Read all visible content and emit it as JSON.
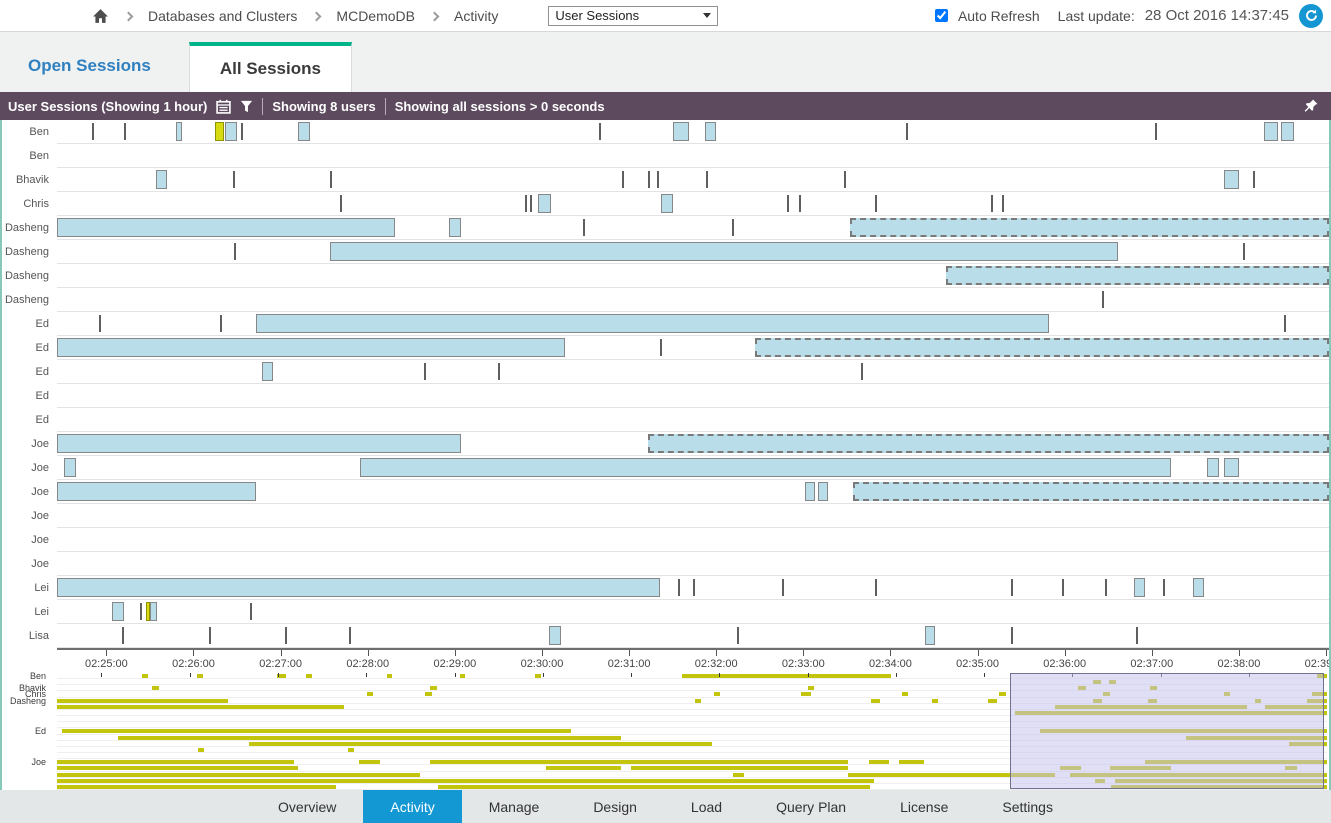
{
  "topbar": {
    "breadcrumb": [
      "Databases and Clusters",
      "MCDemoDB",
      "Activity"
    ],
    "view_select": {
      "value": "User Sessions"
    },
    "auto_refresh_label": "Auto Refresh",
    "auto_refresh_checked": true,
    "last_update_label": "Last update:",
    "last_update_value": "28 Oct 2016 14:37:45"
  },
  "tabs": {
    "open": "Open Sessions",
    "all": "All Sessions",
    "active": "All Sessions"
  },
  "filterbar": {
    "title": "User Sessions  (Showing 1 hour)",
    "users_summary": "Showing 8 users",
    "sessions_summary": "Showing all sessions > 0 seconds"
  },
  "colors": {
    "purple_header": "#5d4a5f",
    "tab_green": "#00b388",
    "link_blue": "#2f80c0",
    "session_fill": "#badee9",
    "session_border": "#878787",
    "yellow_bar": "#d8da12",
    "minimap_bar": "#c2c40e",
    "selection_fill": "#c5c1eb",
    "nav_active": "#1398d4",
    "refresh_blue": "#1496d2",
    "panel_border_teal": "#86c9b8"
  },
  "chart_data": {
    "type": "timeline-gantt",
    "title": "User Sessions (Showing 1 hour)",
    "x_axis": {
      "min": "02:24:26",
      "max": "02:39:02",
      "tick_labels": [
        "02:25:00",
        "02:26:00",
        "02:27:00",
        "02:28:00",
        "02:29:00",
        "02:30:00",
        "02:31:00",
        "02:32:00",
        "02:33:00",
        "02:34:00",
        "02:35:00",
        "02:36:00",
        "02:37:00",
        "02:38:00",
        "02:39:00"
      ]
    },
    "rows": [
      {
        "user": "Ben",
        "sessions": [
          {
            "type": "tick",
            "start": "02:24:50"
          },
          {
            "type": "tick",
            "start": "02:25:12"
          },
          {
            "type": "solid",
            "start": "02:25:48",
            "end": "02:25:52"
          },
          {
            "type": "yellow",
            "start": "02:26:15",
            "end": "02:26:21"
          },
          {
            "type": "solid",
            "start": "02:26:22",
            "end": "02:26:30"
          },
          {
            "type": "tick",
            "start": "02:26:33"
          },
          {
            "type": "solid",
            "start": "02:27:12",
            "end": "02:27:20"
          },
          {
            "type": "tick",
            "start": "02:30:39"
          },
          {
            "type": "solid",
            "start": "02:31:30",
            "end": "02:31:41"
          },
          {
            "type": "solid",
            "start": "02:31:52",
            "end": "02:32:00"
          },
          {
            "type": "tick",
            "start": "02:34:11"
          },
          {
            "type": "tick",
            "start": "02:37:02"
          },
          {
            "type": "solid",
            "start": "02:38:17",
            "end": "02:38:27"
          },
          {
            "type": "solid",
            "start": "02:38:29",
            "end": "02:38:38"
          }
        ]
      },
      {
        "user": "Ben",
        "sessions": []
      },
      {
        "user": "Bhavik",
        "sessions": [
          {
            "type": "solid",
            "start": "02:25:34",
            "end": "02:25:42"
          },
          {
            "type": "tick",
            "start": "02:26:27"
          },
          {
            "type": "tick",
            "start": "02:27:34"
          },
          {
            "type": "tick",
            "start": "02:30:55"
          },
          {
            "type": "tick",
            "start": "02:31:13"
          },
          {
            "type": "tick",
            "start": "02:31:19"
          },
          {
            "type": "tick",
            "start": "02:31:53"
          },
          {
            "type": "tick",
            "start": "02:33:28"
          },
          {
            "type": "solid",
            "start": "02:37:50",
            "end": "02:38:00"
          },
          {
            "type": "tick",
            "start": "02:38:10"
          }
        ]
      },
      {
        "user": "Chris",
        "sessions": [
          {
            "type": "tick",
            "start": "02:27:41"
          },
          {
            "type": "tick",
            "start": "02:29:48"
          },
          {
            "type": "tick",
            "start": "02:29:52"
          },
          {
            "type": "solid",
            "start": "02:29:57",
            "end": "02:30:06"
          },
          {
            "type": "solid",
            "start": "02:31:22",
            "end": "02:31:30"
          },
          {
            "type": "tick",
            "start": "02:32:49"
          },
          {
            "type": "tick",
            "start": "02:32:57"
          },
          {
            "type": "tick",
            "start": "02:33:49"
          },
          {
            "type": "tick",
            "start": "02:35:09"
          },
          {
            "type": "tick",
            "start": "02:35:17"
          }
        ]
      },
      {
        "user": "Dasheng",
        "sessions": [
          {
            "type": "solid",
            "start": "02:24:26",
            "end": "02:28:19"
          },
          {
            "type": "solid",
            "start": "02:28:56",
            "end": "02:29:04"
          },
          {
            "type": "tick",
            "start": "02:30:28"
          },
          {
            "type": "tick",
            "start": "02:32:11"
          },
          {
            "type": "open",
            "start": "02:33:32"
          }
        ]
      },
      {
        "user": "Dasheng",
        "sessions": [
          {
            "type": "tick",
            "start": "02:26:28"
          },
          {
            "type": "solid",
            "start": "02:27:34",
            "end": "02:36:37"
          },
          {
            "type": "tick",
            "start": "02:38:03"
          }
        ]
      },
      {
        "user": "Dasheng",
        "sessions": [
          {
            "type": "open",
            "start": "02:34:38"
          }
        ]
      },
      {
        "user": "Dasheng",
        "sessions": [
          {
            "type": "tick",
            "start": "02:36:26"
          }
        ]
      },
      {
        "user": "Ed",
        "sessions": [
          {
            "type": "tick",
            "start": "02:24:55"
          },
          {
            "type": "tick",
            "start": "02:26:18"
          },
          {
            "type": "solid",
            "start": "02:26:43",
            "end": "02:35:49"
          },
          {
            "type": "tick",
            "start": "02:38:31"
          }
        ]
      },
      {
        "user": "Ed",
        "sessions": [
          {
            "type": "solid",
            "start": "02:24:26",
            "end": "02:30:16"
          },
          {
            "type": "tick",
            "start": "02:31:21"
          },
          {
            "type": "open",
            "start": "02:32:27"
          }
        ]
      },
      {
        "user": "Ed",
        "sessions": [
          {
            "type": "solid",
            "start": "02:26:47",
            "end": "02:26:55"
          },
          {
            "type": "tick",
            "start": "02:28:39"
          },
          {
            "type": "tick",
            "start": "02:29:30"
          },
          {
            "type": "tick",
            "start": "02:33:40"
          }
        ]
      },
      {
        "user": "Ed",
        "sessions": []
      },
      {
        "user": "Ed",
        "sessions": []
      },
      {
        "user": "Joe",
        "sessions": [
          {
            "type": "solid",
            "start": "02:24:26",
            "end": "02:29:04"
          },
          {
            "type": "open",
            "start": "02:31:13"
          }
        ]
      },
      {
        "user": "Joe",
        "sessions": [
          {
            "type": "solid",
            "start": "02:24:31",
            "end": "02:24:39"
          },
          {
            "type": "solid",
            "start": "02:27:55",
            "end": "02:37:13"
          },
          {
            "type": "solid",
            "start": "02:37:38",
            "end": "02:37:46"
          },
          {
            "type": "solid",
            "start": "02:37:50",
            "end": "02:38:00"
          }
        ]
      },
      {
        "user": "Joe",
        "sessions": [
          {
            "type": "solid",
            "start": "02:24:26",
            "end": "02:26:43"
          },
          {
            "type": "solid",
            "start": "02:33:01",
            "end": "02:33:08"
          },
          {
            "type": "solid",
            "start": "02:33:10",
            "end": "02:33:17"
          },
          {
            "type": "open",
            "start": "02:33:34"
          }
        ]
      },
      {
        "user": "Joe",
        "sessions": []
      },
      {
        "user": "Joe",
        "sessions": []
      },
      {
        "user": "Joe",
        "sessions": []
      },
      {
        "user": "Lei",
        "sessions": [
          {
            "type": "solid",
            "start": "02:24:26",
            "end": "02:31:21"
          },
          {
            "type": "tick",
            "start": "02:31:34"
          },
          {
            "type": "tick",
            "start": "02:31:44"
          },
          {
            "type": "tick",
            "start": "02:32:45"
          },
          {
            "type": "tick",
            "start": "02:33:49"
          },
          {
            "type": "tick",
            "start": "02:35:23"
          },
          {
            "type": "tick",
            "start": "02:35:58"
          },
          {
            "type": "tick",
            "start": "02:36:28"
          },
          {
            "type": "solid",
            "start": "02:36:48",
            "end": "02:36:55"
          },
          {
            "type": "tick",
            "start": "02:37:08"
          },
          {
            "type": "solid",
            "start": "02:37:28",
            "end": "02:37:36"
          }
        ]
      },
      {
        "user": "Lei",
        "sessions": [
          {
            "type": "solid",
            "start": "02:25:04",
            "end": "02:25:12"
          },
          {
            "type": "tick",
            "start": "02:25:23"
          },
          {
            "type": "yellow",
            "start": "02:25:27",
            "end": "02:25:30"
          },
          {
            "type": "solid",
            "start": "02:25:30",
            "end": "02:25:35"
          },
          {
            "type": "tick",
            "start": "02:26:39"
          }
        ]
      },
      {
        "user": "Lisa",
        "sessions": [
          {
            "type": "tick",
            "start": "02:25:11"
          },
          {
            "type": "tick",
            "start": "02:26:11"
          },
          {
            "type": "tick",
            "start": "02:27:03"
          },
          {
            "type": "tick",
            "start": "02:27:47"
          },
          {
            "type": "solid",
            "start": "02:30:05",
            "end": "02:30:13"
          },
          {
            "type": "tick",
            "start": "02:32:14"
          },
          {
            "type": "solid",
            "start": "02:34:24",
            "end": "02:34:31"
          },
          {
            "type": "tick",
            "start": "02:35:23"
          },
          {
            "type": "tick",
            "start": "02:36:49"
          }
        ]
      }
    ]
  },
  "minimap": {
    "tick_start_pct": 3.5,
    "tick_step_pct": 6.95,
    "tick_count": 14,
    "selection": {
      "left_pct": 75.0,
      "width_pct": 24.8
    },
    "rows": [
      {
        "label": "Ben",
        "segments": [
          [
            6.7,
            7.2
          ],
          [
            11.0,
            11.5
          ],
          [
            17.3,
            18.0
          ],
          [
            19.6,
            20.1
          ],
          [
            26.0,
            26.4
          ],
          [
            31.7,
            32.1
          ],
          [
            37.6,
            38.1
          ],
          [
            49.2,
            65.7
          ],
          [
            99.2,
            100
          ]
        ]
      },
      {
        "label": null,
        "segments": [
          [
            81.6,
            82.2
          ],
          [
            82.8,
            83.4
          ]
        ]
      },
      {
        "label": "Bhavik",
        "segments": [
          [
            7.5,
            8.0
          ],
          [
            29.4,
            29.9
          ],
          [
            59.1,
            59.6
          ],
          [
            80.4,
            81.0
          ],
          [
            86.1,
            86.6
          ]
        ]
      },
      {
        "label": "Chris",
        "segments": [
          [
            24.4,
            24.9
          ],
          [
            29.0,
            29.5
          ],
          [
            51.7,
            52.2
          ],
          [
            58.6,
            59.4
          ],
          [
            66.5,
            67.0
          ],
          [
            74.2,
            74.7
          ],
          [
            82.4,
            82.9
          ],
          [
            91.9,
            92.4
          ],
          [
            98.8,
            100
          ]
        ]
      },
      {
        "label": "Dasheng",
        "segments": [
          [
            0,
            13.5
          ],
          [
            50.2,
            50.7
          ],
          [
            64.1,
            64.8
          ],
          [
            68.9,
            69.4
          ],
          [
            73.3,
            74.0
          ],
          [
            81.6,
            82.3
          ],
          [
            85.9,
            86.6
          ],
          [
            94.3,
            94.8
          ],
          [
            98.4,
            100
          ]
        ]
      },
      {
        "label": null,
        "segments": [
          [
            0,
            22.6
          ],
          [
            78.6,
            93.7
          ],
          [
            95.1,
            100
          ]
        ]
      },
      {
        "label": null,
        "segments": [
          [
            75.4,
            100
          ]
        ]
      },
      {
        "label": null,
        "segments": []
      },
      {
        "label": null,
        "segments": []
      },
      {
        "label": "Ed",
        "segments": [
          [
            0.4,
            40.5
          ],
          [
            77.4,
            100
          ]
        ]
      },
      {
        "label": null,
        "segments": [
          [
            4.8,
            44.4
          ],
          [
            88.9,
            100
          ]
        ]
      },
      {
        "label": null,
        "segments": [
          [
            15.1,
            51.6
          ],
          [
            97.0,
            100
          ]
        ]
      },
      {
        "label": null,
        "segments": [
          [
            11.1,
            11.6
          ],
          [
            22.9,
            23.4
          ]
        ]
      },
      {
        "label": null,
        "segments": []
      },
      {
        "label": "Joe",
        "segments": [
          [
            0,
            18.7
          ],
          [
            23.8,
            25.4
          ],
          [
            29.4,
            62.3
          ],
          [
            63.9,
            65.5
          ],
          [
            66.3,
            68.3
          ],
          [
            85.7,
            100
          ]
        ]
      },
      {
        "label": null,
        "segments": [
          [
            0,
            19.0
          ],
          [
            38.5,
            44.4
          ],
          [
            45.2,
            62.3
          ],
          [
            79.0,
            80.6
          ],
          [
            82.9,
            87.7
          ],
          [
            96.7,
            97.6
          ]
        ]
      },
      {
        "label": null,
        "segments": [
          [
            0,
            28.6
          ],
          [
            53.2,
            54.1
          ],
          [
            62.3,
            78.6
          ],
          [
            79.8,
            100
          ]
        ]
      },
      {
        "label": null,
        "segments": [
          [
            0,
            64.3
          ],
          [
            81.7,
            82.5
          ],
          [
            83.3,
            100
          ]
        ]
      },
      {
        "label": null,
        "segments": [
          [
            0,
            22.0
          ],
          [
            30.0,
            64.0
          ],
          [
            83.0,
            100
          ]
        ]
      }
    ]
  },
  "nav": {
    "items": [
      "Overview",
      "Activity",
      "Manage",
      "Design",
      "Load",
      "Query Plan",
      "License",
      "Settings"
    ],
    "active": "Activity"
  }
}
